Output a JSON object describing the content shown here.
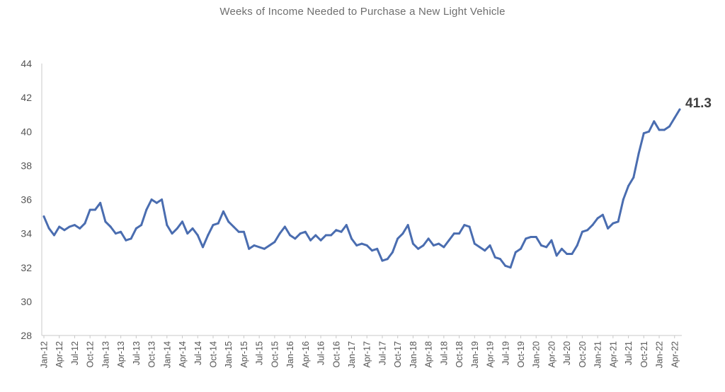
{
  "chart_data": {
    "type": "line",
    "title": "Weeks of Income Needed to Purchase a New Light Vehicle",
    "xlabel": "",
    "ylabel": "",
    "ylim": [
      28,
      44
    ],
    "yticks": [
      28,
      30,
      32,
      34,
      36,
      38,
      40,
      42,
      44
    ],
    "xtick_labels": [
      "Jan-12",
      "Apr-12",
      "Jul-12",
      "Oct-12",
      "Jan-13",
      "Apr-13",
      "Jul-13",
      "Oct-13",
      "Jan-14",
      "Apr-14",
      "Jul-14",
      "Oct-14",
      "Jan-15",
      "Apr-15",
      "Jul-15",
      "Oct-15",
      "Jan-16",
      "Apr-16",
      "Jul-16",
      "Oct-16",
      "Jan-17",
      "Apr-17",
      "Jul-17",
      "Oct-17",
      "Jan-18",
      "Apr-18",
      "Jul-18",
      "Oct-18",
      "Jan-19",
      "Apr-19",
      "Jul-19",
      "Oct-19",
      "Jan-20",
      "Apr-20",
      "Jul-20",
      "Oct-20",
      "Jan-21",
      "Apr-21",
      "Jul-21",
      "Oct-21",
      "Jan-22",
      "Apr-22"
    ],
    "x_start": "Jan-12",
    "x_frequency": "monthly",
    "grid": false,
    "color": "#4a6db0",
    "series": [
      {
        "name": "Weeks of income",
        "values": [
          35.0,
          34.3,
          33.9,
          34.4,
          34.2,
          34.4,
          34.5,
          34.3,
          34.6,
          35.4,
          35.4,
          35.8,
          34.7,
          34.4,
          34.0,
          34.1,
          33.6,
          33.7,
          34.3,
          34.5,
          35.4,
          36.0,
          35.8,
          36.0,
          34.5,
          34.0,
          34.3,
          34.7,
          34.0,
          34.3,
          33.9,
          33.2,
          33.9,
          34.5,
          34.6,
          35.3,
          34.7,
          34.4,
          34.1,
          34.1,
          33.1,
          33.3,
          33.2,
          33.1,
          33.3,
          33.5,
          34.0,
          34.4,
          33.9,
          33.7,
          34.0,
          34.1,
          33.6,
          33.9,
          33.6,
          33.9,
          33.9,
          34.2,
          34.1,
          34.5,
          33.7,
          33.3,
          33.4,
          33.3,
          33.0,
          33.1,
          32.4,
          32.5,
          32.9,
          33.7,
          34.0,
          34.5,
          33.4,
          33.1,
          33.3,
          33.7,
          33.3,
          33.4,
          33.2,
          33.6,
          34.0,
          34.0,
          34.5,
          34.4,
          33.4,
          33.2,
          33.0,
          33.3,
          32.6,
          32.5,
          32.1,
          32.0,
          32.9,
          33.1,
          33.7,
          33.8,
          33.8,
          33.3,
          33.2,
          33.6,
          32.7,
          33.1,
          32.8,
          32.8,
          33.3,
          34.1,
          34.2,
          34.5,
          34.9,
          35.1,
          34.3,
          34.6,
          34.7,
          36.0,
          36.8,
          37.3,
          38.7,
          39.9,
          40.0,
          40.6,
          40.1,
          40.1,
          40.3,
          40.8,
          41.3
        ]
      }
    ],
    "end_label": "41.3"
  }
}
